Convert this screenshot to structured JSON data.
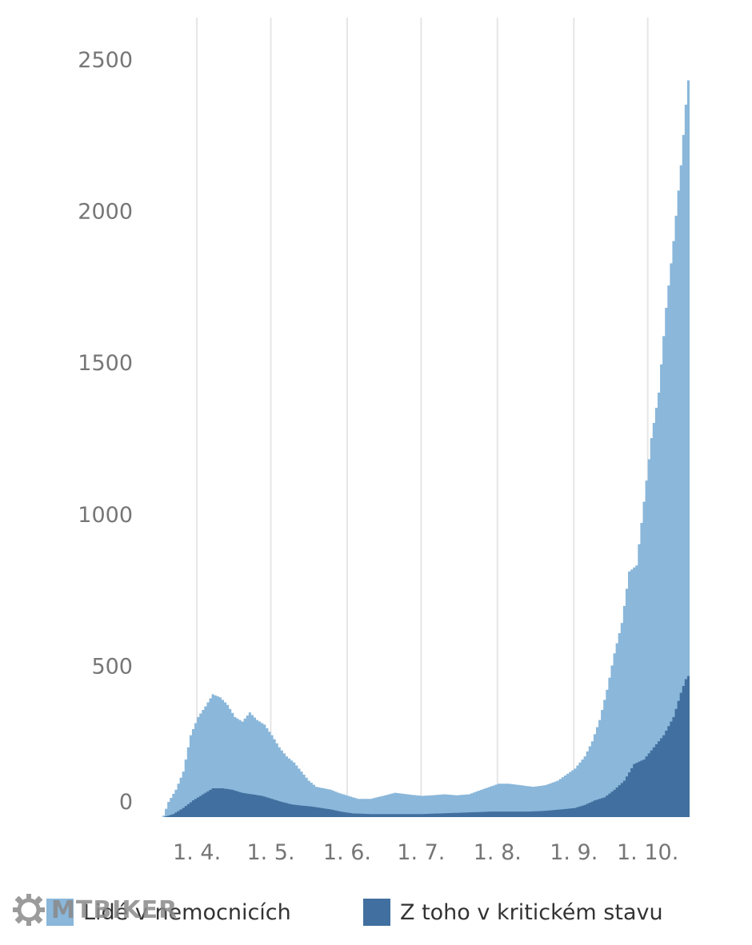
{
  "chart_data": {
    "type": "area",
    "title": "",
    "xlabel": "",
    "ylabel": "",
    "x_range": [
      "2020-03-18",
      "2020-10-18"
    ],
    "ylim": [
      0,
      2500
    ],
    "y_ticks": [
      0,
      500,
      1000,
      1500,
      2000,
      2500
    ],
    "x_ticks": [
      {
        "date": "2020-04-01",
        "label": "1. 4."
      },
      {
        "date": "2020-05-01",
        "label": "1. 5."
      },
      {
        "date": "2020-06-01",
        "label": "1. 6."
      },
      {
        "date": "2020-07-01",
        "label": "1. 7."
      },
      {
        "date": "2020-08-01",
        "label": "1. 8."
      },
      {
        "date": "2020-09-01",
        "label": "1. 9."
      },
      {
        "date": "2020-10-01",
        "label": "1. 10."
      }
    ],
    "grid": "vertical",
    "legend_position": "bottom",
    "series": [
      {
        "name": "Lidé v nemocnicích",
        "color": "#8ab7da",
        "points": [
          [
            "2020-03-18",
            5
          ],
          [
            "2020-03-20",
            50
          ],
          [
            "2020-03-23",
            90
          ],
          [
            "2020-03-26",
            150
          ],
          [
            "2020-03-29",
            270
          ],
          [
            "2020-04-01",
            330
          ],
          [
            "2020-04-04",
            365
          ],
          [
            "2020-04-07",
            405
          ],
          [
            "2020-04-10",
            395
          ],
          [
            "2020-04-13",
            370
          ],
          [
            "2020-04-16",
            330
          ],
          [
            "2020-04-19",
            315
          ],
          [
            "2020-04-22",
            345
          ],
          [
            "2020-04-25",
            320
          ],
          [
            "2020-04-28",
            305
          ],
          [
            "2020-05-01",
            270
          ],
          [
            "2020-05-04",
            230
          ],
          [
            "2020-05-07",
            200
          ],
          [
            "2020-05-10",
            180
          ],
          [
            "2020-05-13",
            150
          ],
          [
            "2020-05-16",
            120
          ],
          [
            "2020-05-19",
            100
          ],
          [
            "2020-05-22",
            95
          ],
          [
            "2020-05-25",
            90
          ],
          [
            "2020-05-28",
            80
          ],
          [
            "2020-06-01",
            70
          ],
          [
            "2020-06-05",
            60
          ],
          [
            "2020-06-10",
            60
          ],
          [
            "2020-06-15",
            70
          ],
          [
            "2020-06-20",
            80
          ],
          [
            "2020-06-25",
            75
          ],
          [
            "2020-07-01",
            70
          ],
          [
            "2020-07-05",
            72
          ],
          [
            "2020-07-10",
            75
          ],
          [
            "2020-07-15",
            72
          ],
          [
            "2020-07-20",
            75
          ],
          [
            "2020-07-25",
            90
          ],
          [
            "2020-08-01",
            110
          ],
          [
            "2020-08-05",
            110
          ],
          [
            "2020-08-10",
            105
          ],
          [
            "2020-08-15",
            100
          ],
          [
            "2020-08-20",
            105
          ],
          [
            "2020-08-25",
            120
          ],
          [
            "2020-09-01",
            160
          ],
          [
            "2020-09-05",
            200
          ],
          [
            "2020-09-08",
            250
          ],
          [
            "2020-09-11",
            320
          ],
          [
            "2020-09-14",
            420
          ],
          [
            "2020-09-17",
            540
          ],
          [
            "2020-09-20",
            640
          ],
          [
            "2020-09-23",
            810
          ],
          [
            "2020-09-26",
            830
          ],
          [
            "2020-09-29",
            1040
          ],
          [
            "2020-10-02",
            1250
          ],
          [
            "2020-10-05",
            1400
          ],
          [
            "2020-10-08",
            1680
          ],
          [
            "2020-10-11",
            1900
          ],
          [
            "2020-10-14",
            2150
          ],
          [
            "2020-10-16",
            2350
          ],
          [
            "2020-10-18",
            2510
          ]
        ]
      },
      {
        "name": "Z toho v kritickém stavu",
        "color": "#416f9f",
        "points": [
          [
            "2020-03-18",
            0
          ],
          [
            "2020-03-22",
            10
          ],
          [
            "2020-03-26",
            30
          ],
          [
            "2020-03-30",
            55
          ],
          [
            "2020-04-03",
            75
          ],
          [
            "2020-04-07",
            95
          ],
          [
            "2020-04-11",
            95
          ],
          [
            "2020-04-15",
            90
          ],
          [
            "2020-04-19",
            80
          ],
          [
            "2020-04-23",
            75
          ],
          [
            "2020-04-27",
            70
          ],
          [
            "2020-05-01",
            60
          ],
          [
            "2020-05-05",
            50
          ],
          [
            "2020-05-09",
            42
          ],
          [
            "2020-05-13",
            38
          ],
          [
            "2020-05-17",
            35
          ],
          [
            "2020-05-21",
            30
          ],
          [
            "2020-05-25",
            25
          ],
          [
            "2020-05-29",
            18
          ],
          [
            "2020-06-03",
            12
          ],
          [
            "2020-06-10",
            10
          ],
          [
            "2020-06-17",
            10
          ],
          [
            "2020-06-24",
            10
          ],
          [
            "2020-07-01",
            10
          ],
          [
            "2020-07-08",
            12
          ],
          [
            "2020-07-15",
            14
          ],
          [
            "2020-07-22",
            16
          ],
          [
            "2020-07-29",
            18
          ],
          [
            "2020-08-05",
            18
          ],
          [
            "2020-08-12",
            18
          ],
          [
            "2020-08-19",
            20
          ],
          [
            "2020-08-26",
            25
          ],
          [
            "2020-09-01",
            30
          ],
          [
            "2020-09-05",
            40
          ],
          [
            "2020-09-09",
            55
          ],
          [
            "2020-09-13",
            65
          ],
          [
            "2020-09-17",
            90
          ],
          [
            "2020-09-21",
            120
          ],
          [
            "2020-09-25",
            175
          ],
          [
            "2020-09-29",
            190
          ],
          [
            "2020-10-03",
            230
          ],
          [
            "2020-10-07",
            270
          ],
          [
            "2020-10-11",
            330
          ],
          [
            "2020-10-14",
            410
          ],
          [
            "2020-10-16",
            455
          ],
          [
            "2020-10-18",
            475
          ]
        ]
      }
    ]
  },
  "watermark": {
    "text": "MTBIKER",
    "icon": "gear-icon"
  }
}
